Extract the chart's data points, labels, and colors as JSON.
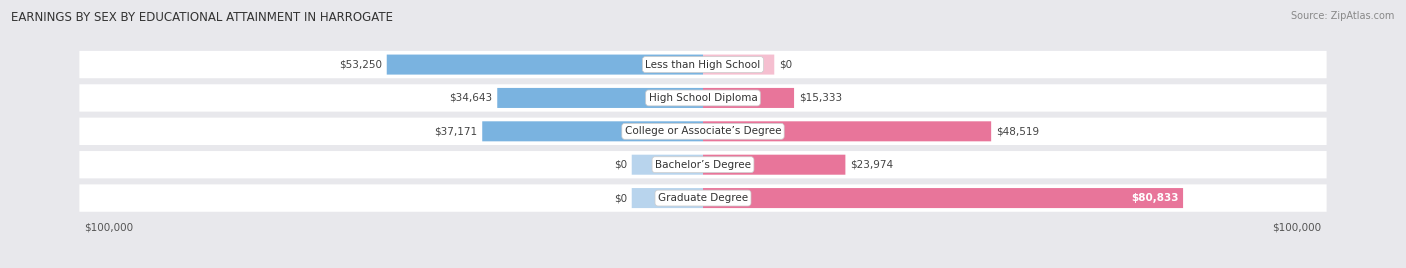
{
  "title": "EARNINGS BY SEX BY EDUCATIONAL ATTAINMENT IN HARROGATE",
  "source": "Source: ZipAtlas.com",
  "categories": [
    "Less than High School",
    "High School Diploma",
    "College or Associate’s Degree",
    "Bachelor’s Degree",
    "Graduate Degree"
  ],
  "male_values": [
    53250,
    34643,
    37171,
    0,
    0
  ],
  "female_values": [
    0,
    15333,
    48519,
    23974,
    80833
  ],
  "male_color": "#7ab3e0",
  "female_color": "#e8759a",
  "male_zero_color": "#b8d4ed",
  "female_zero_color": "#f5bfd0",
  "x_max": 100000,
  "bg_color": "#e8e8ec",
  "row_bg_color": "#ffffff",
  "title_fontsize": 8.5,
  "source_fontsize": 7.0,
  "value_fontsize": 7.5,
  "cat_fontsize": 7.5,
  "legend_fontsize": 8,
  "axis_label_fontsize": 7.5,
  "zero_placeholder": 12000
}
